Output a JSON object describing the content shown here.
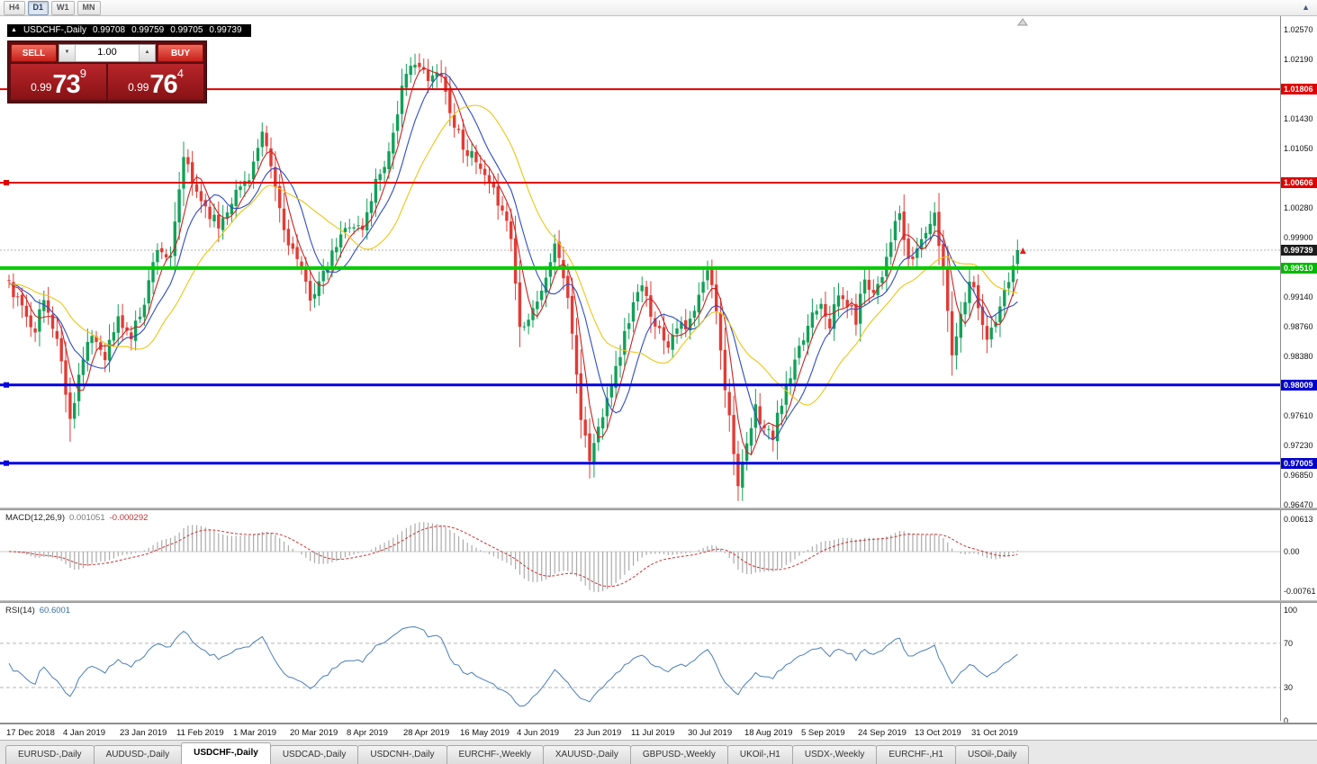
{
  "toolbar": {
    "timeframes": [
      {
        "label": "H4",
        "active": false
      },
      {
        "label": "D1",
        "active": true
      },
      {
        "label": "W1",
        "active": false
      },
      {
        "label": "MN",
        "active": false
      }
    ],
    "scroll_icon": "▲"
  },
  "chart_info": {
    "collapse_icon": "▲",
    "symbol": "USDCHF-,Daily",
    "open": "0.99708",
    "high": "0.99759",
    "low": "0.99705",
    "close": "0.99739"
  },
  "trade_panel": {
    "sell_label": "SELL",
    "buy_label": "BUY",
    "volume": "1.00",
    "spinner_down": "▼",
    "spinner_up": "▲",
    "sell_price": {
      "prefix": "0.99",
      "big": "73",
      "pip": "9"
    },
    "buy_price": {
      "prefix": "0.99",
      "big": "76",
      "pip": "4"
    }
  },
  "price_scale": {
    "ticks": [
      {
        "label": "1.02570",
        "value": 1.0257
      },
      {
        "label": "1.02190",
        "value": 1.0219
      },
      {
        "label": "1.01430",
        "value": 1.0143
      },
      {
        "label": "1.01050",
        "value": 1.0105
      },
      {
        "label": "1.00280",
        "value": 1.0028
      },
      {
        "label": "0.99900",
        "value": 0.999
      },
      {
        "label": "0.99140",
        "value": 0.9914
      },
      {
        "label": "0.98760",
        "value": 0.9876
      },
      {
        "label": "0.98380",
        "value": 0.9838
      },
      {
        "label": "0.97610",
        "value": 0.9761
      },
      {
        "label": "0.97230",
        "value": 0.9723
      },
      {
        "label": "0.96850",
        "value": 0.9685
      },
      {
        "label": "0.96470",
        "value": 0.9647
      }
    ],
    "markers": [
      {
        "label": "1.01806",
        "value": 1.01806,
        "bg": "#e00000",
        "fg": "#ffffff"
      },
      {
        "label": "1.00606",
        "value": 1.00606,
        "bg": "#e00000",
        "fg": "#ffffff"
      },
      {
        "label": "0.99739",
        "value": 0.99739,
        "bg": "#1c1c1c",
        "fg": "#ffffff"
      },
      {
        "label": "0.99510",
        "value": 0.9951,
        "bg": "#00b800",
        "fg": "#ffffff"
      },
      {
        "label": "0.98009",
        "value": 0.98009,
        "bg": "#0000cd",
        "fg": "#ffffff"
      },
      {
        "label": "0.97005",
        "value": 0.97005,
        "bg": "#0000cd",
        "fg": "#ffffff"
      }
    ]
  },
  "hlines": [
    {
      "label": "1.01806",
      "value": 1.01806,
      "color": "#e00000",
      "width": 2,
      "handle": false
    },
    {
      "label": "1.00606",
      "value": 1.00606,
      "color": "#e00000",
      "width": 2,
      "handle": true
    },
    {
      "label": "0.99510",
      "value": 0.9951,
      "color": "#00cc00",
      "width": 4,
      "handle": false
    },
    {
      "label": "0.98009",
      "value": 0.98009,
      "color": "#0000e0",
      "width": 3,
      "handle": true
    },
    {
      "label": "0.97005",
      "value": 0.97005,
      "color": "#0000e0",
      "width": 3,
      "handle": true
    }
  ],
  "current_price": {
    "value": 0.99739,
    "label": "0.99739"
  },
  "chart_data": {
    "type": "candlestick",
    "symbol": "USDCHF",
    "timeframe": "Daily",
    "title": "USDCHF-,Daily",
    "ohlc_current": {
      "open": 0.99708,
      "high": 0.99759,
      "low": 0.99705,
      "close": 0.99739
    },
    "y_range": [
      0.9647,
      1.0257
    ],
    "y_step": 0.0038,
    "bars": 232,
    "up_color": "#12a158",
    "down_color": "#e23b36",
    "ma_lines": [
      {
        "period": 5,
        "color": "#cc2222"
      },
      {
        "period": 10,
        "color": "#2f4cc4"
      },
      {
        "period": 21,
        "color": "#eec514"
      }
    ],
    "close_anchors": [
      [
        0,
        0.993
      ],
      [
        3,
        0.9898
      ],
      [
        6,
        0.9875
      ],
      [
        8,
        0.991
      ],
      [
        11,
        0.986
      ],
      [
        13,
        0.9795
      ],
      [
        14,
        0.9755
      ],
      [
        16,
        0.9815
      ],
      [
        19,
        0.9865
      ],
      [
        22,
        0.984
      ],
      [
        25,
        0.9885
      ],
      [
        28,
        0.9862
      ],
      [
        31,
        0.991
      ],
      [
        34,
        0.998
      ],
      [
        37,
        0.996
      ],
      [
        40,
        1.0095
      ],
      [
        42,
        1.006
      ],
      [
        45,
        1.003
      ],
      [
        48,
        1.0005
      ],
      [
        51,
        1.004
      ],
      [
        55,
        1.007
      ],
      [
        58,
        1.012
      ],
      [
        60,
        1.008
      ],
      [
        63,
        1.0
      ],
      [
        66,
        0.996
      ],
      [
        69,
        0.9915
      ],
      [
        72,
        0.994
      ],
      [
        75,
        0.998
      ],
      [
        78,
        1.001
      ],
      [
        81,
        1.0
      ],
      [
        84,
        1.0062
      ],
      [
        87,
        1.01
      ],
      [
        90,
        1.018
      ],
      [
        93,
        1.022
      ],
      [
        96,
        1.019
      ],
      [
        99,
        1.0205
      ],
      [
        101,
        1.015
      ],
      [
        104,
        1.011
      ],
      [
        107,
        1.0085
      ],
      [
        110,
        1.0055
      ],
      [
        113,
        1.003
      ],
      [
        115,
        0.999
      ],
      [
        117,
        0.9875
      ],
      [
        120,
        0.99
      ],
      [
        123,
        0.9935
      ],
      [
        125,
        0.9985
      ],
      [
        127,
        0.994
      ],
      [
        129,
        0.987
      ],
      [
        131,
        0.976
      ],
      [
        133,
        0.9706
      ],
      [
        135,
        0.9745
      ],
      [
        137,
        0.979
      ],
      [
        139,
        0.982
      ],
      [
        141,
        0.9865
      ],
      [
        143,
        0.9905
      ],
      [
        145,
        0.9925
      ],
      [
        147,
        0.9895
      ],
      [
        149,
        0.987
      ],
      [
        151,
        0.9855
      ],
      [
        153,
        0.988
      ],
      [
        155,
        0.987
      ],
      [
        157,
        0.9895
      ],
      [
        159,
        0.993
      ],
      [
        160,
        0.995
      ],
      [
        162,
        0.99
      ],
      [
        164,
        0.98
      ],
      [
        166,
        0.972
      ],
      [
        167,
        0.967
      ],
      [
        169,
        0.972
      ],
      [
        171,
        0.977
      ],
      [
        173,
        0.9745
      ],
      [
        175,
        0.9735
      ],
      [
        177,
        0.978
      ],
      [
        179,
        0.981
      ],
      [
        182,
        0.986
      ],
      [
        184,
        0.9895
      ],
      [
        186,
        0.991
      ],
      [
        188,
        0.988
      ],
      [
        190,
        0.9915
      ],
      [
        192,
        0.9905
      ],
      [
        194,
        0.9885
      ],
      [
        196,
        0.994
      ],
      [
        198,
        0.992
      ],
      [
        200,
        0.9945
      ],
      [
        202,
        0.999
      ],
      [
        204,
        1.002
      ],
      [
        206,
        0.9955
      ],
      [
        208,
        0.9975
      ],
      [
        210,
        1.0
      ],
      [
        212,
        1.0015
      ],
      [
        214,
        0.995
      ],
      [
        216,
        0.9845
      ],
      [
        218,
        0.989
      ],
      [
        220,
        0.994
      ],
      [
        222,
        0.9905
      ],
      [
        224,
        0.986
      ],
      [
        226,
        0.988
      ],
      [
        228,
        0.992
      ],
      [
        230,
        0.995
      ],
      [
        231,
        0.99739
      ]
    ],
    "low_spikes": [
      [
        14,
        0.9728
      ],
      [
        133,
        0.9696
      ],
      [
        167,
        0.966
      ],
      [
        175,
        0.9718
      ]
    ],
    "high_spikes": [
      [
        40,
        1.0105
      ],
      [
        93,
        1.0226
      ],
      [
        99,
        1.0218
      ]
    ],
    "macd": {
      "fast": 12,
      "slow": 26,
      "signal": 9
    },
    "rsi": {
      "period": 14
    }
  },
  "macd_panel": {
    "name": "MACD(12,26,9)",
    "value_main": "0.001051",
    "value_signal": "-0.000292",
    "axis": [
      {
        "label": "0.00613",
        "value": 0.00613
      },
      {
        "label": "0.00",
        "value": 0
      },
      {
        "label": "-0.00761",
        "value": -0.00761
      }
    ],
    "histogram_color": "#ababab",
    "signal_color": "#cc3333"
  },
  "rsi_panel": {
    "name": "RSI(14)",
    "value": "60.6001",
    "axis": [
      {
        "label": "100",
        "value": 100
      },
      {
        "label": "70",
        "value": 70
      },
      {
        "label": "30",
        "value": 30
      },
      {
        "label": "0",
        "value": 0
      }
    ],
    "levels": [
      70,
      30
    ],
    "line_color": "#4a7ebb"
  },
  "time_axis": {
    "bars_per_label": 13,
    "labels": [
      "17 Dec 2018",
      "4 Jan 2019",
      "23 Jan 2019",
      "11 Feb 2019",
      "1 Mar 2019",
      "20 Mar 2019",
      "8 Apr 2019",
      "28 Apr 2019",
      "16 May 2019",
      "4 Jun 2019",
      "23 Jun 2019",
      "11 Jul 2019",
      "30 Jul 2019",
      "18 Aug 2019",
      "5 Sep 2019",
      "24 Sep 2019",
      "13 Oct 2019",
      "31 Oct 2019"
    ]
  },
  "tabs": [
    {
      "label": "EURUSD-,Daily",
      "active": false
    },
    {
      "label": "AUDUSD-,Daily",
      "active": false
    },
    {
      "label": "USDCHF-,Daily",
      "active": true
    },
    {
      "label": "USDCAD-,Daily",
      "active": false
    },
    {
      "label": "USDCNH-,Daily",
      "active": false
    },
    {
      "label": "EURCHF-,Weekly",
      "active": false
    },
    {
      "label": "XAUUSD-,Daily",
      "active": false
    },
    {
      "label": "GBPUSD-,Weekly",
      "active": false
    },
    {
      "label": "UKOil-,H1",
      "active": false
    },
    {
      "label": "USDX-,Weekly",
      "active": false
    },
    {
      "label": "EURCHF-,H1",
      "active": false
    },
    {
      "label": "USOil-,Daily",
      "active": false
    }
  ]
}
